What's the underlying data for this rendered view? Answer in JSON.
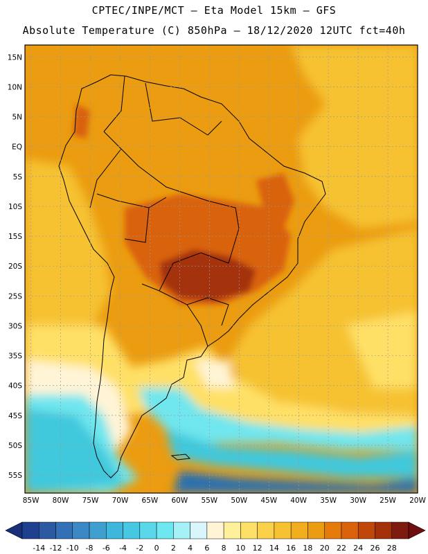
{
  "header": {
    "line1": "CPTEC/INPE/MCT –  Eta Model 15km – GFS",
    "line2": "Absolute Temperature (C) 850hPa – 18/12/2020 12UTC fct=40h"
  },
  "map": {
    "variable": "Absolute Temperature (C)",
    "level": "850hPa",
    "lat_range": [
      -58,
      17
    ],
    "lon_range": [
      -86,
      -20
    ],
    "lat_labels": [
      "15N",
      "10N",
      "5N",
      "EQ",
      "5S",
      "10S",
      "15S",
      "20S",
      "25S",
      "30S",
      "35S",
      "40S",
      "45S",
      "50S",
      "55S"
    ],
    "lon_labels": [
      "85W",
      "80W",
      "75W",
      "70W",
      "65W",
      "60W",
      "55W",
      "50W",
      "45W",
      "40W",
      "35W",
      "30W",
      "25W",
      "20W"
    ],
    "colors": {
      "ocean_south": "#2a6fae",
      "cold_band": "#3fc8dc",
      "cool_band": "#6fe6ee",
      "neutral": "#fff4d6",
      "mild": "#ffe066",
      "warm": "#f6c232",
      "hot": "#eb9c10",
      "hotter": "#d9620a",
      "hottest": "#a4300a",
      "coast": "#000000"
    }
  },
  "colorbar": {
    "labels": [
      "-14",
      "-12",
      "-10",
      "-8",
      "-6",
      "-4",
      "-2",
      "0",
      "2",
      "4",
      "6",
      "8",
      "10",
      "12",
      "14",
      "16",
      "18",
      "20",
      "22",
      "24",
      "26",
      "28"
    ],
    "colors": [
      "#1f3f8f",
      "#2b5aa3",
      "#3371b6",
      "#3b88c4",
      "#3f9fcf",
      "#3fb6db",
      "#46c8e2",
      "#5ad8ea",
      "#6de7f0",
      "#a6f0f7",
      "#d8f6fb",
      "#fff4d6",
      "#fff09a",
      "#ffe066",
      "#fbd04a",
      "#f6c232",
      "#f2ad1e",
      "#eb9c10",
      "#e47a0a",
      "#d9620a",
      "#c0470a",
      "#a4300a",
      "#7d1c0e"
    ],
    "under_color": "#1a2f7a",
    "over_color": "#6e0e0e"
  }
}
